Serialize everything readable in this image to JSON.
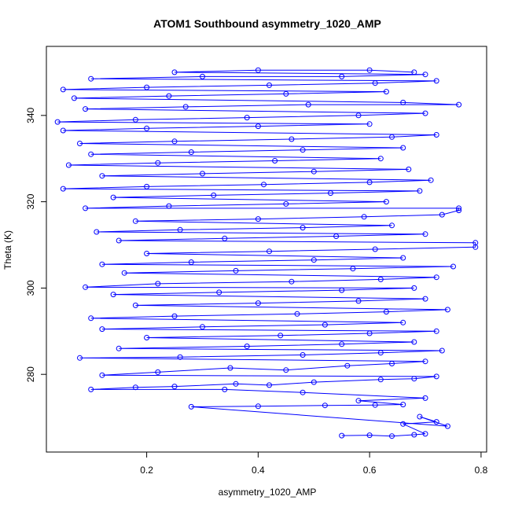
{
  "chart_data": {
    "type": "scatter",
    "title": "ATOM1 Southbound asymmetry_1020_AMP",
    "xlabel": "asymmetry_1020_AMP",
    "ylabel": "Theta (K)",
    "xlim": [
      0.02,
      0.81
    ],
    "ylim": [
      262,
      356
    ],
    "x_ticks": [
      0.2,
      0.4,
      0.6,
      0.8
    ],
    "x_tick_labels": [
      "0.2",
      "0.4",
      "0.6",
      "0.8"
    ],
    "y_ticks": [
      280,
      300,
      320,
      340
    ],
    "y_tick_labels": [
      "280",
      "300",
      "320",
      "340"
    ],
    "marker": "open-circle",
    "connected": true,
    "grid": false,
    "series": [
      {
        "color": "#0000ff",
        "points": [
          [
            0.55,
            265.8
          ],
          [
            0.6,
            265.9
          ],
          [
            0.64,
            265.7
          ],
          [
            0.68,
            266.0
          ],
          [
            0.7,
            266.2
          ],
          [
            0.66,
            268.5
          ],
          [
            0.72,
            269.0
          ],
          [
            0.69,
            270.2
          ],
          [
            0.74,
            268.0
          ],
          [
            0.28,
            272.5
          ],
          [
            0.4,
            272.6
          ],
          [
            0.52,
            272.8
          ],
          [
            0.61,
            272.9
          ],
          [
            0.66,
            273.0
          ],
          [
            0.58,
            273.9
          ],
          [
            0.7,
            274.5
          ],
          [
            0.48,
            275.8
          ],
          [
            0.34,
            276.5
          ],
          [
            0.1,
            276.5
          ],
          [
            0.18,
            277.0
          ],
          [
            0.25,
            277.2
          ],
          [
            0.36,
            277.8
          ],
          [
            0.42,
            277.5
          ],
          [
            0.5,
            278.2
          ],
          [
            0.62,
            278.8
          ],
          [
            0.68,
            279.0
          ],
          [
            0.72,
            279.5
          ],
          [
            0.12,
            279.8
          ],
          [
            0.22,
            280.5
          ],
          [
            0.35,
            281.5
          ],
          [
            0.45,
            281.0
          ],
          [
            0.56,
            282.0
          ],
          [
            0.64,
            282.5
          ],
          [
            0.7,
            283.0
          ],
          [
            0.08,
            283.8
          ],
          [
            0.26,
            284.0
          ],
          [
            0.48,
            284.5
          ],
          [
            0.62,
            285.0
          ],
          [
            0.73,
            285.5
          ],
          [
            0.15,
            286.0
          ],
          [
            0.38,
            286.5
          ],
          [
            0.55,
            287.0
          ],
          [
            0.68,
            287.5
          ],
          [
            0.2,
            288.5
          ],
          [
            0.44,
            289.0
          ],
          [
            0.6,
            289.5
          ],
          [
            0.72,
            290.0
          ],
          [
            0.12,
            290.5
          ],
          [
            0.3,
            291.0
          ],
          [
            0.52,
            291.5
          ],
          [
            0.66,
            292.0
          ],
          [
            0.1,
            293.0
          ],
          [
            0.25,
            293.5
          ],
          [
            0.47,
            294.0
          ],
          [
            0.63,
            294.5
          ],
          [
            0.74,
            295.0
          ],
          [
            0.18,
            296.0
          ],
          [
            0.4,
            296.5
          ],
          [
            0.58,
            297.0
          ],
          [
            0.7,
            297.5
          ],
          [
            0.14,
            298.5
          ],
          [
            0.33,
            299.0
          ],
          [
            0.55,
            299.5
          ],
          [
            0.68,
            300.0
          ],
          [
            0.09,
            300.2
          ],
          [
            0.22,
            301.0
          ],
          [
            0.46,
            301.5
          ],
          [
            0.62,
            302.0
          ],
          [
            0.72,
            302.5
          ],
          [
            0.16,
            303.5
          ],
          [
            0.36,
            304.0
          ],
          [
            0.57,
            304.5
          ],
          [
            0.75,
            305.0
          ],
          [
            0.12,
            305.5
          ],
          [
            0.28,
            306.0
          ],
          [
            0.5,
            306.5
          ],
          [
            0.66,
            307.0
          ],
          [
            0.2,
            308.0
          ],
          [
            0.42,
            308.5
          ],
          [
            0.61,
            309.0
          ],
          [
            0.79,
            309.5
          ],
          [
            0.79,
            310.5
          ],
          [
            0.15,
            311.0
          ],
          [
            0.34,
            311.5
          ],
          [
            0.54,
            312.0
          ],
          [
            0.7,
            312.5
          ],
          [
            0.11,
            313.0
          ],
          [
            0.26,
            313.5
          ],
          [
            0.48,
            314.0
          ],
          [
            0.64,
            314.5
          ],
          [
            0.18,
            315.5
          ],
          [
            0.4,
            316.0
          ],
          [
            0.59,
            316.5
          ],
          [
            0.73,
            317.0
          ],
          [
            0.76,
            318.0
          ],
          [
            0.76,
            318.5
          ],
          [
            0.09,
            318.5
          ],
          [
            0.24,
            319.0
          ],
          [
            0.45,
            319.5
          ],
          [
            0.63,
            320.0
          ],
          [
            0.14,
            321.0
          ],
          [
            0.32,
            321.5
          ],
          [
            0.53,
            322.0
          ],
          [
            0.69,
            322.5
          ],
          [
            0.05,
            323.0
          ],
          [
            0.2,
            323.5
          ],
          [
            0.41,
            324.0
          ],
          [
            0.6,
            324.5
          ],
          [
            0.71,
            325.0
          ],
          [
            0.12,
            326.0
          ],
          [
            0.3,
            326.5
          ],
          [
            0.5,
            327.0
          ],
          [
            0.67,
            327.5
          ],
          [
            0.06,
            328.5
          ],
          [
            0.22,
            329.0
          ],
          [
            0.43,
            329.5
          ],
          [
            0.62,
            330.0
          ],
          [
            0.1,
            331.0
          ],
          [
            0.28,
            331.5
          ],
          [
            0.48,
            332.0
          ],
          [
            0.66,
            332.5
          ],
          [
            0.08,
            333.5
          ],
          [
            0.25,
            334.0
          ],
          [
            0.46,
            334.5
          ],
          [
            0.64,
            335.0
          ],
          [
            0.72,
            335.5
          ],
          [
            0.05,
            336.5
          ],
          [
            0.2,
            337.0
          ],
          [
            0.4,
            337.5
          ],
          [
            0.6,
            338.0
          ],
          [
            0.04,
            338.5
          ],
          [
            0.18,
            339.0
          ],
          [
            0.38,
            339.5
          ],
          [
            0.58,
            340.0
          ],
          [
            0.7,
            340.5
          ],
          [
            0.09,
            341.5
          ],
          [
            0.27,
            342.0
          ],
          [
            0.49,
            342.5
          ],
          [
            0.76,
            342.5
          ],
          [
            0.66,
            343.0
          ],
          [
            0.07,
            344.0
          ],
          [
            0.24,
            344.5
          ],
          [
            0.45,
            345.0
          ],
          [
            0.63,
            345.5
          ],
          [
            0.05,
            346.0
          ],
          [
            0.2,
            346.5
          ],
          [
            0.42,
            347.0
          ],
          [
            0.61,
            347.5
          ],
          [
            0.72,
            348.0
          ],
          [
            0.1,
            348.5
          ],
          [
            0.3,
            349.0
          ],
          [
            0.55,
            349.0
          ],
          [
            0.7,
            349.5
          ],
          [
            0.25,
            350.0
          ],
          [
            0.4,
            350.5
          ],
          [
            0.6,
            350.5
          ],
          [
            0.68,
            350.0
          ]
        ]
      }
    ]
  }
}
